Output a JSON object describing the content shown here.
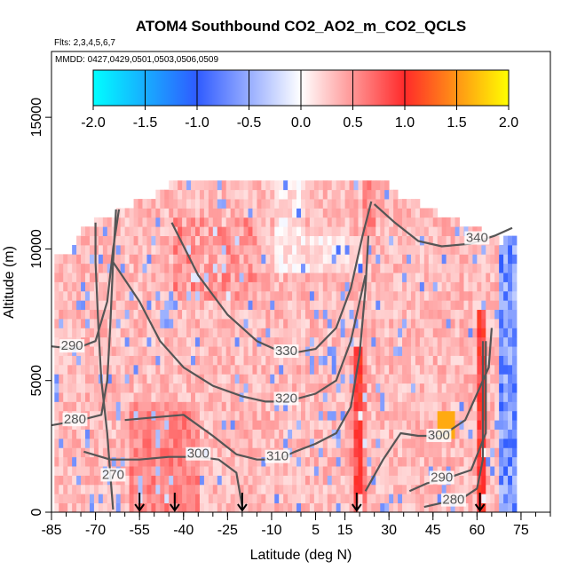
{
  "chart_data": {
    "type": "heatmap",
    "title": "ATOM4 Southbound CO2_AO2_m_CO2_QCLS",
    "flights_label": "Flts: 2,3,4,5,6,7",
    "dates_label": "MMDD: 0427,0429,0501,0503,0506,0509",
    "xlabel": "Latitude (deg N)",
    "ylabel": "Altitude (m)",
    "xlim": [
      -85,
      85
    ],
    "ylim": [
      0,
      17500
    ],
    "x_ticks": [
      -85,
      -70,
      -55,
      -40,
      -25,
      -10,
      5,
      15,
      30,
      45,
      60,
      75
    ],
    "x_tick_labels": [
      "-85",
      "-70",
      "-55",
      "-40",
      "-25",
      "-10",
      "5",
      "15",
      "30",
      "45",
      "60",
      "75"
    ],
    "y_ticks": [
      0,
      5000,
      10000,
      15000
    ],
    "y_tick_labels": [
      "0",
      "5000",
      "10000",
      "15000"
    ],
    "colorbar": {
      "min": -2.0,
      "max": 2.0,
      "ticks": [
        -2.0,
        -1.5,
        -1.0,
        -0.5,
        0.0,
        0.5,
        1.0,
        1.5,
        2.0
      ],
      "tick_labels": [
        "-2.0",
        "-1.5",
        "-1.0",
        "-0.5",
        "0.0",
        "0.5",
        "1.0",
        "1.5",
        "2.0"
      ],
      "colors": [
        "#00ffff",
        "#2f5bff",
        "#ffffff",
        "#ff2a2a",
        "#ffff00"
      ]
    },
    "theta_contours": [
      {
        "label": "270",
        "label_lat": -64,
        "label_alt": 1300,
        "points": [
          [
            -64,
            100
          ],
          [
            -65,
            1500
          ],
          [
            -66,
            3000
          ],
          [
            -68,
            5000
          ],
          [
            -69,
            7000
          ],
          [
            -70,
            9500
          ],
          [
            -70,
            11000
          ]
        ]
      },
      {
        "label": "280",
        "label_lat": -77,
        "label_alt": 3400,
        "points": [
          [
            -85,
            3300
          ],
          [
            -75,
            3500
          ],
          [
            -68,
            3700
          ],
          [
            -66,
            5000
          ],
          [
            -65,
            7000
          ],
          [
            -64,
            9500
          ],
          [
            -63,
            11500
          ]
        ]
      },
      {
        "label": "280",
        "label_lat": 52,
        "label_alt": 350,
        "points": [
          [
            42,
            200
          ],
          [
            50,
            400
          ],
          [
            56,
            600
          ],
          [
            60,
            900
          ],
          [
            62,
            2000
          ],
          [
            62,
            5000
          ],
          [
            62,
            6500
          ]
        ]
      },
      {
        "label": "290",
        "label_lat": -78,
        "label_alt": 6200,
        "points": [
          [
            -85,
            6300
          ],
          [
            -77,
            6200
          ],
          [
            -70,
            6500
          ],
          [
            -66,
            8000
          ],
          [
            -64,
            10000
          ],
          [
            -62,
            11500
          ]
        ]
      },
      {
        "label": "290",
        "label_lat": 48,
        "label_alt": 1200,
        "points": [
          [
            37,
            800
          ],
          [
            43,
            1100
          ],
          [
            50,
            1300
          ],
          [
            58,
            1600
          ],
          [
            63,
            3000
          ],
          [
            63,
            5500
          ],
          [
            63,
            6500
          ]
        ]
      },
      {
        "label": "300",
        "label_lat": -35,
        "label_alt": 2100,
        "points": [
          [
            -74,
            2300
          ],
          [
            -65,
            2000
          ],
          [
            -55,
            2000
          ],
          [
            -45,
            2100
          ],
          [
            -35,
            2100
          ],
          [
            -28,
            2000
          ],
          [
            -22,
            1500
          ],
          [
            -20,
            200
          ]
        ]
      },
      {
        "label": "300",
        "label_lat": 47,
        "label_alt": 2800,
        "points": [
          [
            22,
            800
          ],
          [
            28,
            2000
          ],
          [
            34,
            3000
          ],
          [
            40,
            2900
          ],
          [
            48,
            2900
          ],
          [
            56,
            3500
          ],
          [
            60,
            4500
          ],
          [
            64,
            5500
          ],
          [
            65,
            7000
          ]
        ]
      },
      {
        "label": "310",
        "label_lat": -8,
        "label_alt": 2000,
        "points": [
          [
            -60,
            3500
          ],
          [
            -50,
            3600
          ],
          [
            -40,
            3700
          ],
          [
            -30,
            2900
          ],
          [
            -22,
            2200
          ],
          [
            -15,
            2000
          ],
          [
            -8,
            2000
          ],
          [
            -2,
            2300
          ],
          [
            5,
            2600
          ],
          [
            12,
            3000
          ],
          [
            17,
            4000
          ],
          [
            20,
            6000
          ],
          [
            22,
            8500
          ],
          [
            23,
            10500
          ]
        ]
      },
      {
        "label": "320",
        "label_lat": -5,
        "label_alt": 4200,
        "points": [
          [
            -64,
            9500
          ],
          [
            -55,
            8000
          ],
          [
            -48,
            6500
          ],
          [
            -40,
            5500
          ],
          [
            -30,
            4800
          ],
          [
            -20,
            4400
          ],
          [
            -12,
            4200
          ],
          [
            -5,
            4200
          ],
          [
            5,
            4500
          ],
          [
            12,
            5000
          ],
          [
            17,
            6500
          ],
          [
            22,
            9000
          ]
        ]
      },
      {
        "label": "330",
        "label_lat": -5,
        "label_alt": 6000,
        "points": [
          [
            -44,
            11000
          ],
          [
            -35,
            9000
          ],
          [
            -25,
            7500
          ],
          [
            -15,
            6500
          ],
          [
            -5,
            6000
          ],
          [
            5,
            6200
          ],
          [
            12,
            7000
          ],
          [
            17,
            8500
          ],
          [
            21,
            10500
          ],
          [
            24,
            11800
          ]
        ]
      },
      {
        "label": "340",
        "label_lat": 60,
        "label_alt": 10300,
        "points": [
          [
            25,
            11700
          ],
          [
            32,
            11000
          ],
          [
            40,
            10300
          ],
          [
            48,
            10100
          ],
          [
            58,
            10200
          ],
          [
            66,
            10500
          ],
          [
            72,
            10800
          ]
        ]
      }
    ],
    "sample_markers_lat": [
      -55,
      -43,
      -20,
      19,
      61
    ]
  }
}
